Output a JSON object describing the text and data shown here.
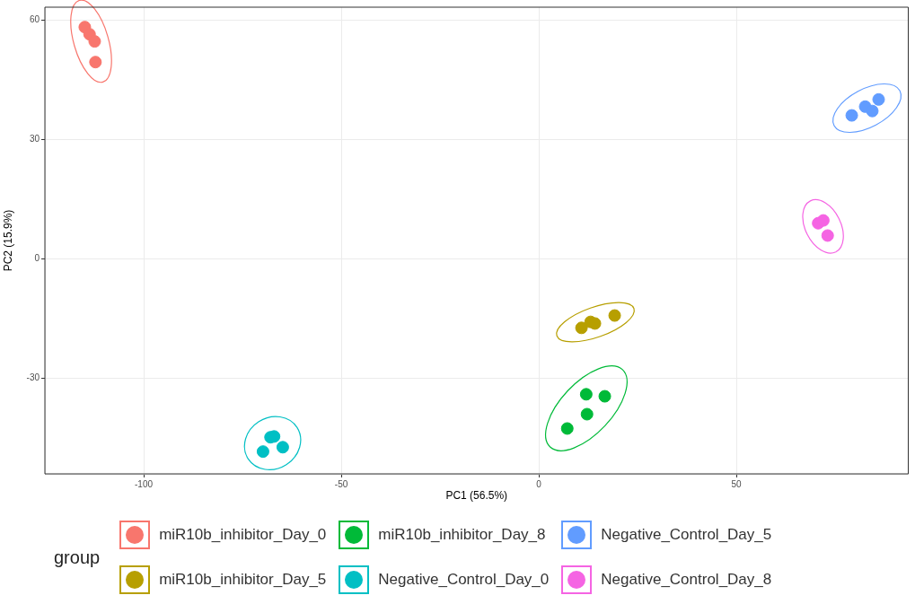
{
  "chart_data": {
    "type": "scatter",
    "xlabel": "PC1 (56.5%)",
    "ylabel": "PC2 (15.9%)",
    "legend_title": "group",
    "legend": "bottom",
    "grid": true,
    "marker": "circle",
    "xlim": [
      -125,
      93.5
    ],
    "xticks": [
      -100,
      -50,
      0,
      50
    ],
    "ylim": [
      -54,
      63.3
    ],
    "yticks": [
      -30,
      0,
      30,
      60
    ],
    "series": [
      {
        "name": "miR10b_inhibitor_Day_0",
        "color": "#f8766d",
        "x": [
          -114.9,
          -113.7,
          -112.4,
          -112.2
        ],
        "values": [
          58.3,
          56.5,
          54.7,
          49.5
        ]
      },
      {
        "name": "miR10b_inhibitor_Day_5",
        "color": "#b79f00",
        "x": [
          10.8,
          13.1,
          14.2,
          19.2
        ],
        "values": [
          -17.3,
          -15.8,
          -16.2,
          -14.2
        ]
      },
      {
        "name": "miR10b_inhibitor_Day_8",
        "color": "#00ba38",
        "x": [
          12.0,
          16.7,
          12.2,
          7.2
        ],
        "values": [
          -34.0,
          -34.5,
          -39.0,
          -42.6
        ]
      },
      {
        "name": "Negative_Control_Day_0",
        "color": "#00bfc4",
        "x": [
          -67.9,
          -67.0,
          -64.8,
          -69.8
        ],
        "values": [
          -44.8,
          -44.6,
          -47.3,
          -48.4
        ]
      },
      {
        "name": "Negative_Control_Day_5",
        "color": "#619cff",
        "x": [
          79.2,
          82.6,
          84.4,
          86.0
        ],
        "values": [
          36.1,
          38.3,
          37.2,
          40.1
        ]
      },
      {
        "name": "Negative_Control_Day_8",
        "color": "#f564e3",
        "x": [
          70.7,
          72.0,
          73.1
        ],
        "values": [
          9.0,
          9.7,
          5.9
        ]
      }
    ]
  }
}
